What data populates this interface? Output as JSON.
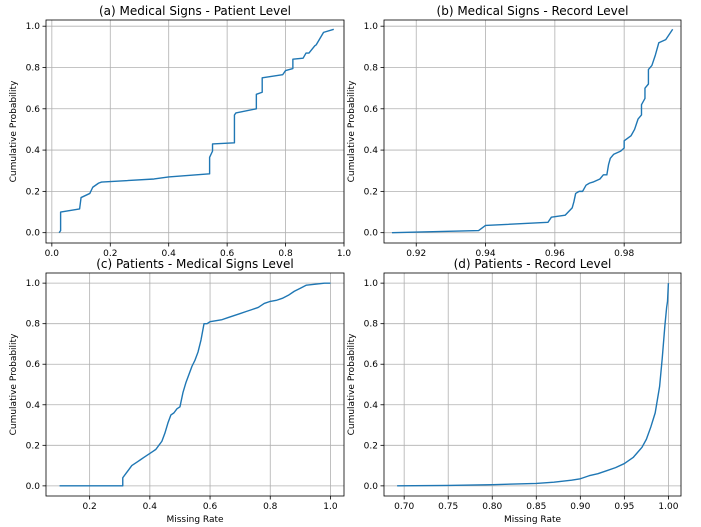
{
  "chart_data": [
    {
      "type": "line",
      "title": "(a) Medical Signs - Patient Level",
      "xlabel": "",
      "ylabel": "Cumulative Probability",
      "xlim": [
        -0.02,
        1.0
      ],
      "ylim": [
        -0.05,
        1.03
      ],
      "xticks": [
        0.0,
        0.2,
        0.4,
        0.6,
        0.8,
        1.0
      ],
      "xtick_labels": [
        "0.0",
        "0.2",
        "0.4",
        "0.6",
        "0.8",
        "1.0"
      ],
      "yticks": [
        0.0,
        0.2,
        0.4,
        0.6,
        0.8,
        1.0
      ],
      "ytick_labels": [
        "0.0",
        "0.2",
        "0.4",
        "0.6",
        "0.8",
        "1.0"
      ],
      "grid": true,
      "x": [
        0.025,
        0.03,
        0.03,
        0.095,
        0.1,
        0.13,
        0.14,
        0.16,
        0.17,
        0.35,
        0.4,
        0.54,
        0.54,
        0.55,
        0.55,
        0.625,
        0.625,
        0.63,
        0.7,
        0.7,
        0.72,
        0.72,
        0.79,
        0.8,
        0.825,
        0.825,
        0.86,
        0.87,
        0.88,
        0.9,
        0.905,
        0.93,
        0.965
      ],
      "y": [
        0.0,
        0.01,
        0.1,
        0.115,
        0.17,
        0.19,
        0.22,
        0.24,
        0.245,
        0.26,
        0.27,
        0.285,
        0.365,
        0.395,
        0.43,
        0.435,
        0.57,
        0.58,
        0.6,
        0.67,
        0.68,
        0.75,
        0.765,
        0.785,
        0.795,
        0.84,
        0.845,
        0.87,
        0.87,
        0.905,
        0.91,
        0.97,
        0.985
      ]
    },
    {
      "type": "line",
      "title": "(b) Medical Signs - Record Level",
      "xlabel": "",
      "ylabel": "Cumulative Probability",
      "xlim": [
        0.9107,
        0.9964
      ],
      "ylim": [
        -0.05,
        1.03
      ],
      "xticks": [
        0.92,
        0.94,
        0.96,
        0.98
      ],
      "xtick_labels": [
        "0.92",
        "0.94",
        "0.96",
        "0.98"
      ],
      "yticks": [
        0.0,
        0.2,
        0.4,
        0.6,
        0.8,
        1.0
      ],
      "ytick_labels": [
        "0.0",
        "0.2",
        "0.4",
        "0.6",
        "0.8",
        "1.0"
      ],
      "grid": true,
      "x": [
        0.913,
        0.938,
        0.94,
        0.958,
        0.959,
        0.963,
        0.965,
        0.9655,
        0.966,
        0.967,
        0.968,
        0.969,
        0.97,
        0.971,
        0.973,
        0.974,
        0.975,
        0.9755,
        0.976,
        0.977,
        0.979,
        0.98,
        0.98,
        0.982,
        0.983,
        0.984,
        0.985,
        0.985,
        0.986,
        0.986,
        0.987,
        0.987,
        0.988,
        0.989,
        0.99,
        0.992,
        0.994
      ],
      "y": [
        0.0,
        0.01,
        0.035,
        0.05,
        0.075,
        0.085,
        0.12,
        0.15,
        0.19,
        0.2,
        0.2,
        0.23,
        0.24,
        0.245,
        0.26,
        0.28,
        0.28,
        0.33,
        0.36,
        0.38,
        0.395,
        0.41,
        0.445,
        0.47,
        0.5,
        0.55,
        0.57,
        0.62,
        0.65,
        0.7,
        0.72,
        0.79,
        0.81,
        0.86,
        0.92,
        0.935,
        0.985
      ]
    },
    {
      "type": "line",
      "title": "(c) Patients - Medical Signs Level",
      "xlabel": "Missing Rate",
      "ylabel": "Cumulative Probability",
      "xlim": [
        0.055,
        1.045
      ],
      "ylim": [
        -0.05,
        1.05
      ],
      "xticks": [
        0.2,
        0.4,
        0.6,
        0.8,
        1.0
      ],
      "xtick_labels": [
        "0.2",
        "0.4",
        "0.6",
        "0.8",
        "1.0"
      ],
      "yticks": [
        0.0,
        0.2,
        0.4,
        0.6,
        0.8,
        1.0
      ],
      "ytick_labels": [
        "0.0",
        "0.2",
        "0.4",
        "0.6",
        "0.8",
        "1.0"
      ],
      "grid": true,
      "x": [
        0.1,
        0.31,
        0.31,
        0.32,
        0.33,
        0.34,
        0.35,
        0.36,
        0.37,
        0.38,
        0.39,
        0.4,
        0.41,
        0.42,
        0.43,
        0.44,
        0.45,
        0.46,
        0.47,
        0.48,
        0.49,
        0.5,
        0.51,
        0.52,
        0.53,
        0.54,
        0.55,
        0.56,
        0.57,
        0.58,
        0.59,
        0.6,
        0.62,
        0.64,
        0.66,
        0.68,
        0.7,
        0.72,
        0.74,
        0.76,
        0.78,
        0.8,
        0.82,
        0.84,
        0.86,
        0.88,
        0.9,
        0.92,
        0.95,
        0.98,
        1.0
      ],
      "y": [
        0.0,
        0.0,
        0.04,
        0.06,
        0.08,
        0.1,
        0.11,
        0.12,
        0.13,
        0.14,
        0.15,
        0.16,
        0.17,
        0.18,
        0.2,
        0.22,
        0.26,
        0.31,
        0.35,
        0.36,
        0.38,
        0.39,
        0.46,
        0.51,
        0.55,
        0.59,
        0.62,
        0.66,
        0.72,
        0.8,
        0.8,
        0.81,
        0.815,
        0.82,
        0.83,
        0.84,
        0.85,
        0.86,
        0.87,
        0.88,
        0.9,
        0.91,
        0.915,
        0.925,
        0.94,
        0.96,
        0.975,
        0.99,
        0.995,
        1.0,
        1.0
      ]
    },
    {
      "type": "line",
      "title": "(d) Patients - Record Level",
      "xlabel": "Missing Rate",
      "ylabel": "Cumulative Probability",
      "xlim": [
        0.6771,
        1.0143
      ],
      "ylim": [
        -0.05,
        1.05
      ],
      "xticks": [
        0.7,
        0.75,
        0.8,
        0.85,
        0.9,
        0.95,
        1.0
      ],
      "xtick_labels": [
        "0.70",
        "0.75",
        "0.80",
        "0.85",
        "0.90",
        "0.95",
        "1.00"
      ],
      "yticks": [
        0.0,
        0.2,
        0.4,
        0.6,
        0.8,
        1.0
      ],
      "ytick_labels": [
        "0.0",
        "0.2",
        "0.4",
        "0.6",
        "0.8",
        "1.0"
      ],
      "grid": true,
      "x": [
        0.692,
        0.75,
        0.8,
        0.85,
        0.87,
        0.89,
        0.9,
        0.91,
        0.92,
        0.93,
        0.94,
        0.95,
        0.96,
        0.97,
        0.975,
        0.98,
        0.985,
        0.99,
        0.993,
        0.996,
        0.998,
        0.999,
        1.0
      ],
      "y": [
        0.0,
        0.002,
        0.006,
        0.012,
        0.018,
        0.028,
        0.035,
        0.05,
        0.06,
        0.075,
        0.09,
        0.11,
        0.14,
        0.19,
        0.23,
        0.29,
        0.36,
        0.49,
        0.63,
        0.79,
        0.88,
        0.91,
        1.0
      ]
    }
  ]
}
